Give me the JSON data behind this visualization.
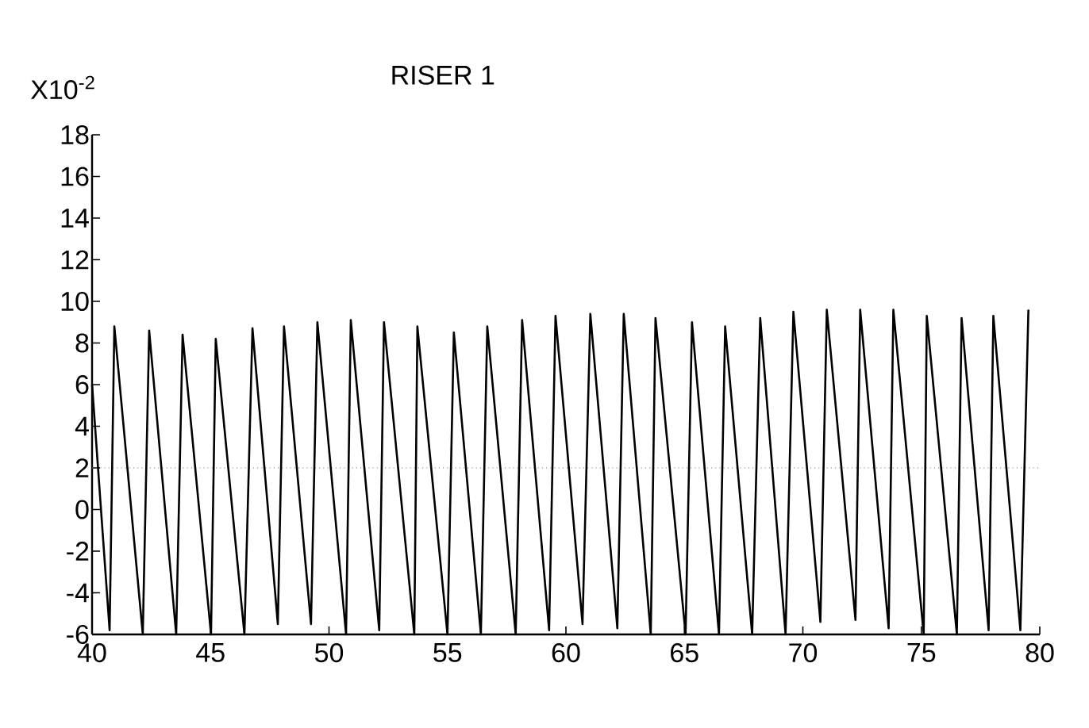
{
  "chart_data": {
    "type": "line",
    "title": "RISER 1",
    "ylabel": "X10$^{-2}$",
    "x": [
      40,
      40.74,
      40.94,
      42.14,
      42.41,
      43.55,
      43.82,
      45.02,
      45.22,
      46.43,
      46.77,
      47.84,
      48.1,
      49.24,
      49.51,
      50.72,
      50.92,
      52.12,
      52.32,
      53.6,
      53.73,
      55.0,
      55.27,
      56.41,
      56.68,
      57.88,
      58.15,
      59.29,
      59.56,
      60.7,
      61.03,
      62.17,
      62.44,
      63.58,
      63.78,
      65.05,
      65.32,
      66.46,
      66.72,
      67.86,
      68.2,
      69.27,
      69.6,
      70.74,
      71.01,
      72.22,
      72.42,
      73.62,
      73.82,
      75.1,
      75.23,
      76.5,
      76.7,
      77.84,
      78.04,
      79.18,
      79.52
    ],
    "series": [
      {
        "color": "#000000",
        "values": [
          6,
          -5.8,
          8.8,
          -6,
          8.6,
          -6,
          8.4,
          -6,
          8.2,
          -6,
          8.7,
          -5.5,
          8.8,
          -5.5,
          9.0,
          -6,
          9.1,
          -5.8,
          9.0,
          -6,
          8.8,
          -6,
          8.5,
          -6,
          8.8,
          -6,
          9.1,
          -5.8,
          9.3,
          -5.5,
          9.4,
          -5.7,
          9.4,
          -6,
          9.2,
          -6,
          9.0,
          -6,
          8.8,
          -6,
          9.2,
          -6,
          9.5,
          -5.4,
          9.6,
          -5.3,
          9.6,
          -5.7,
          9.6,
          -6,
          9.3,
          -6,
          9.2,
          -5.8,
          9.3,
          -5.8,
          9.6
        ]
      }
    ],
    "xlim": [
      40,
      80
    ],
    "ylim": [
      -6,
      18
    ],
    "xticks": [
      40,
      45,
      50,
      55,
      60,
      65,
      70,
      75,
      80
    ],
    "yticks": [
      -6,
      -4,
      -2,
      0,
      2,
      4,
      6,
      8,
      10,
      12,
      14,
      16,
      18
    ],
    "ref_lines": [
      {
        "axis": "y",
        "value": 2,
        "color": "#808080",
        "line_style": "dotted"
      }
    ],
    "grid": false,
    "marker": "none",
    "line_style": "solid"
  }
}
